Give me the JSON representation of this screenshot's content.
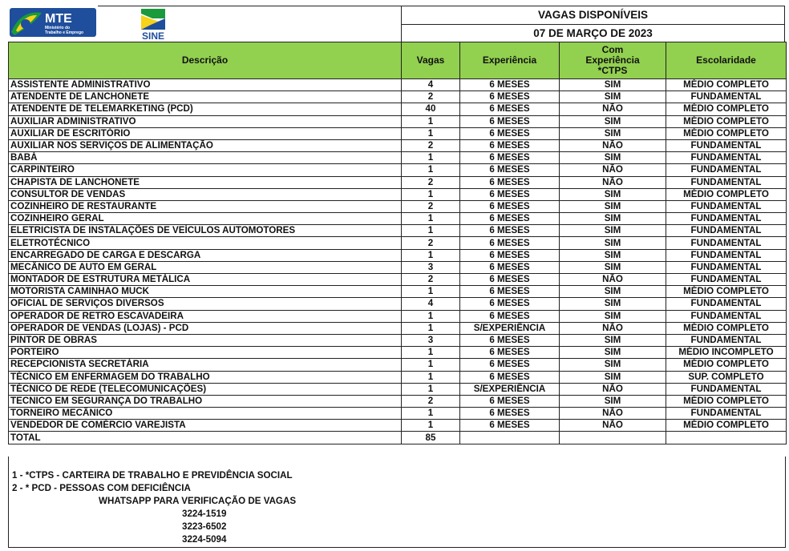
{
  "header": {
    "logo_mte": "MTE",
    "logo_mte_sub": "Ministério do Trabalho e Emprego",
    "logo_sine": "SINE",
    "title": "VAGAS DISPONÍVEIS",
    "date": "07 DE MARÇO DE 2023",
    "colors": {
      "green": "#92d050",
      "blue": "#1f4e9c",
      "yellow": "#f5d21b",
      "brand_green": "#1a9a3c"
    }
  },
  "columns": [
    "Descrição",
    "Vagas",
    "Experiência",
    "Com Experiência *CTPS",
    "Escolaridade"
  ],
  "rows": [
    [
      "ASSISTENTE ADMINISTRATIVO",
      "4",
      "6 MESES",
      "SIM",
      "MÉDIO COMPLETO"
    ],
    [
      "ATENDENTE DE LANCHONETE",
      "2",
      "6 MESES",
      "SIM",
      "FUNDAMENTAL"
    ],
    [
      "ATENDENTE DE TELEMARKETING (PCD)",
      "40",
      "6 MESES",
      "NÃO",
      "MÉDIO COMPLETO"
    ],
    [
      "AUXILIAR ADMINISTRATIVO",
      "1",
      "6 MESES",
      "SIM",
      "MÉDIO COMPLETO"
    ],
    [
      "AUXILIAR DE ESCRITÓRIO",
      "1",
      "6 MESES",
      "SIM",
      "MÉDIO COMPLETO"
    ],
    [
      "AUXILIAR NOS SERVIÇOS DE ALIMENTAÇÃO",
      "2",
      "6 MESES",
      "NÃO",
      "FUNDAMENTAL"
    ],
    [
      "BABÁ",
      "1",
      "6 MESES",
      "SIM",
      "FUNDAMENTAL"
    ],
    [
      "CARPINTEIRO",
      "1",
      "6 MESES",
      "NÃO",
      "FUNDAMENTAL"
    ],
    [
      "CHAPISTA DE LANCHONETE",
      "2",
      "6 MESES",
      "NÃO",
      "FUNDAMENTAL"
    ],
    [
      "CONSULTOR DE VENDAS",
      "1",
      "6 MESES",
      "SIM",
      "MÉDIO COMPLETO"
    ],
    [
      "COZINHEIRO DE RESTAURANTE",
      "2",
      "6 MESES",
      "SIM",
      "FUNDAMENTAL"
    ],
    [
      "COZINHEIRO GERAL",
      "1",
      "6 MESES",
      "SIM",
      "FUNDAMENTAL"
    ],
    [
      "ELETRICISTA DE INSTALAÇÕES DE VEÍCULOS AUTOMOTORES",
      "1",
      "6 MESES",
      "SIM",
      "FUNDAMENTAL"
    ],
    [
      "ELETROTÉCNICO",
      "2",
      "6 MESES",
      "SIM",
      "FUNDAMENTAL"
    ],
    [
      "ENCARREGADO DE CARGA E DESCARGA",
      "1",
      "6 MESES",
      "SIM",
      "FUNDAMENTAL"
    ],
    [
      "MECÂNICO DE AUTO EM GERAL",
      "3",
      "6 MESES",
      "SIM",
      "FUNDAMENTAL"
    ],
    [
      "MONTADOR DE ESTRUTURA METÁLICA",
      "2",
      "6 MESES",
      "NÃO",
      "FUNDAMENTAL"
    ],
    [
      "MOTORISTA CAMINHAO MUCK",
      "1",
      "6 MESES",
      "SIM",
      "MÉDIO COMPLETO"
    ],
    [
      "OFICIAL DE SERVIÇOS DIVERSOS",
      "4",
      "6 MESES",
      "SIM",
      "FUNDAMENTAL"
    ],
    [
      "OPERADOR DE RETRO ESCAVADEIRA",
      "1",
      "6 MESES",
      "SIM",
      "FUNDAMENTAL"
    ],
    [
      "OPERADOR DE VENDAS (LOJAS) - PCD",
      "1",
      "S/EXPERIÊNCIA",
      "NÃO",
      "MÉDIO COMPLETO"
    ],
    [
      "PINTOR DE OBRAS",
      "3",
      "6 MESES",
      "SIM",
      "FUNDAMENTAL"
    ],
    [
      "PORTEIRO",
      "1",
      "6 MESES",
      "SIM",
      "MÉDIO INCOMPLETO"
    ],
    [
      "RECEPCIONISTA SECRETÁRIA",
      "1",
      "6 MESES",
      "SIM",
      "MÉDIO COMPLETO"
    ],
    [
      "TÉCNICO EM ENFERMAGEM DO TRABALHO",
      "1",
      "6 MESES",
      "SIM",
      "SUP. COMPLETO"
    ],
    [
      "TÉCNICO DE REDE (TELECOMUNICAÇÕES)",
      "1",
      "S/EXPERIÊNCIA",
      "NÃO",
      "FUNDAMENTAL"
    ],
    [
      "TECNICO EM SEGURANÇA DO TRABALHO",
      "2",
      "6 MESES",
      "SIM",
      "MÉDIO COMPLETO"
    ],
    [
      "TORNEIRO MECÂNICO",
      "1",
      "6 MESES",
      "NÃO",
      "FUNDAMENTAL"
    ],
    [
      "VENDEDOR DE COMÉRCIO VAREJISTA",
      "1",
      "6 MESES",
      "NÃO",
      "MÉDIO COMPLETO"
    ]
  ],
  "total": {
    "label": "TOTAL",
    "value": "85"
  },
  "footer": {
    "note1": "1 - *CTPS - CARTEIRA DE TRABALHO E PREVIDÊNCIA SOCIAL",
    "note2": "2 - * PCD - PESSOAS COM DEFICIÊNCIA",
    "whatsapp_label": "WHATSAPP PARA VERIFICAÇÃO DE VAGAS",
    "phones": [
      "3224-1519",
      "3223-6502",
      "3224-5094"
    ]
  }
}
